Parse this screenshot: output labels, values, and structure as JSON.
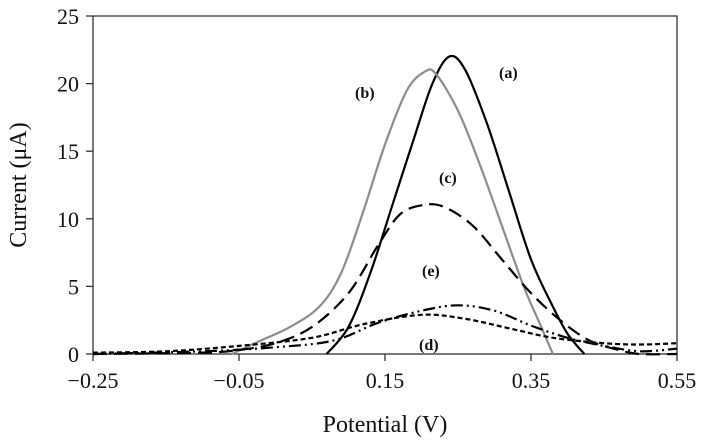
{
  "chart_data": {
    "type": "line",
    "title": "",
    "xlabel": "Potential (V)",
    "ylabel": "Current (μA)",
    "xlim": [
      -0.25,
      0.55
    ],
    "ylim": [
      0,
      25
    ],
    "xticks": [
      -0.25,
      -0.05,
      0.15,
      0.35,
      0.55
    ],
    "xtick_labels": [
      "−0.25",
      "−0.05",
      "0.15",
      "0.35",
      "0.55"
    ],
    "yticks": [
      0,
      5,
      10,
      15,
      20,
      25
    ],
    "ytick_labels": [
      "0",
      "5",
      "10",
      "15",
      "20",
      "25"
    ],
    "grid": false,
    "legend": "none (curves labelled inline)",
    "series": [
      {
        "name": "(a)",
        "color": "#000000",
        "dash": "solid",
        "points": [
          [
            0.07,
            0
          ],
          [
            0.1,
            2
          ],
          [
            0.13,
            6
          ],
          [
            0.16,
            11
          ],
          [
            0.19,
            16
          ],
          [
            0.215,
            20
          ],
          [
            0.238,
            22
          ],
          [
            0.26,
            21
          ],
          [
            0.29,
            17
          ],
          [
            0.32,
            12
          ],
          [
            0.35,
            7
          ],
          [
            0.38,
            3.5
          ],
          [
            0.4,
            1.5
          ],
          [
            0.423,
            0
          ]
        ]
      },
      {
        "name": "(b)",
        "color": "#8c8c8c",
        "dash": "solid",
        "points": [
          [
            -0.06,
            0
          ],
          [
            -0.02,
            1
          ],
          [
            0.02,
            2
          ],
          [
            0.06,
            3.5
          ],
          [
            0.09,
            6
          ],
          [
            0.12,
            10.5
          ],
          [
            0.15,
            15.5
          ],
          [
            0.18,
            19.5
          ],
          [
            0.205,
            20.9
          ],
          [
            0.22,
            20.7
          ],
          [
            0.25,
            18
          ],
          [
            0.28,
            14
          ],
          [
            0.31,
            9.5
          ],
          [
            0.34,
            5
          ],
          [
            0.36,
            2.5
          ],
          [
            0.38,
            0
          ]
        ]
      },
      {
        "name": "(c)",
        "color": "#000000",
        "dash": "long-dash",
        "points": [
          [
            -0.25,
            0
          ],
          [
            -0.1,
            0.1
          ],
          [
            -0.05,
            0.3
          ],
          [
            0,
            0.8
          ],
          [
            0.05,
            2
          ],
          [
            0.1,
            4.5
          ],
          [
            0.14,
            8
          ],
          [
            0.17,
            10.3
          ],
          [
            0.2,
            11
          ],
          [
            0.23,
            10.9
          ],
          [
            0.27,
            9.5
          ],
          [
            0.31,
            7
          ],
          [
            0.35,
            4.5
          ],
          [
            0.39,
            2.5
          ],
          [
            0.43,
            1
          ],
          [
            0.47,
            0.3
          ],
          [
            0.5,
            0
          ],
          [
            0.55,
            0
          ]
        ]
      },
      {
        "name": "(d)",
        "color": "#000000",
        "dash": "short-dash",
        "points": [
          [
            -0.25,
            0.1
          ],
          [
            -0.15,
            0.2
          ],
          [
            -0.05,
            0.6
          ],
          [
            0.05,
            1.2
          ],
          [
            0.12,
            2.2
          ],
          [
            0.2,
            2.9
          ],
          [
            0.26,
            2.6
          ],
          [
            0.32,
            1.9
          ],
          [
            0.38,
            1.2
          ],
          [
            0.45,
            0.8
          ],
          [
            0.5,
            0.7
          ],
          [
            0.55,
            0.8
          ]
        ]
      },
      {
        "name": "(e)",
        "color": "#000000",
        "dash": "dash-dot-dot",
        "points": [
          [
            -0.25,
            0
          ],
          [
            -0.1,
            0.2
          ],
          [
            0,
            0.5
          ],
          [
            0.08,
            1
          ],
          [
            0.14,
            2.3
          ],
          [
            0.2,
            3.2
          ],
          [
            0.25,
            3.6
          ],
          [
            0.3,
            3.2
          ],
          [
            0.35,
            2.1
          ],
          [
            0.4,
            1.2
          ],
          [
            0.45,
            0.6
          ],
          [
            0.5,
            0.2
          ],
          [
            0.55,
            0.4
          ]
        ]
      }
    ]
  }
}
